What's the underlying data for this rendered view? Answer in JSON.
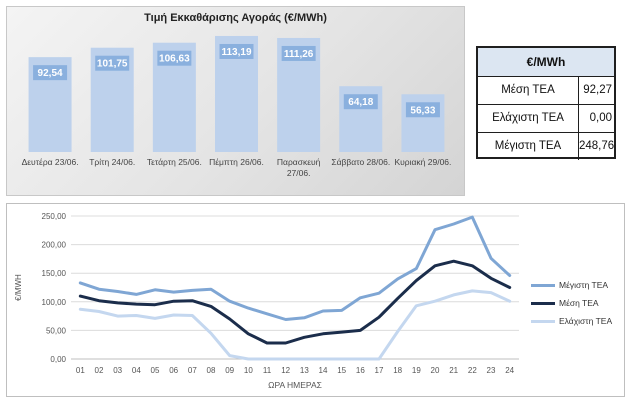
{
  "chart_data": [
    {
      "type": "bar",
      "title": "Τιμή Εκκαθάρισης Αγοράς (€/MWh)",
      "categories": [
        "Δευτέρα 23/06.",
        "Τρίτη 24/06.",
        "Τετάρτη 25/06.",
        "Πέμπτη 26/06.",
        "Παρασκευή 27/06.",
        "Σάββατο 28/06.",
        "Κυριακή 29/06."
      ],
      "values": [
        92.54,
        101.75,
        106.63,
        113.19,
        111.26,
        64.18,
        56.33
      ],
      "value_labels": [
        "92,54",
        "101,75",
        "106,63",
        "113,19",
        "111,26",
        "64,18",
        "56,33"
      ],
      "ylim": [
        0,
        120
      ],
      "grid": false,
      "bar_color": "#bdd1ec",
      "label_box_color": "#8ab0de"
    },
    {
      "type": "line",
      "xlabel": "ΩΡΑ ΗΜΕΡΑΣ",
      "ylabel": "€/MWH",
      "x": [
        "01",
        "02",
        "03",
        "04",
        "05",
        "06",
        "07",
        "08",
        "09",
        "10",
        "11",
        "12",
        "13",
        "14",
        "15",
        "16",
        "17",
        "18",
        "19",
        "20",
        "21",
        "22",
        "23",
        "24"
      ],
      "yticks": [
        "0,00",
        "50,00",
        "100,00",
        "150,00",
        "200,00",
        "250,00"
      ],
      "ylim": [
        0,
        250
      ],
      "grid": true,
      "legend_position": "right",
      "series": [
        {
          "name": "Μέγιστη ΤΕΑ",
          "color": "#7fa6d4",
          "values": [
            133,
            122,
            118,
            113,
            121,
            117,
            120,
            122,
            101,
            89,
            79,
            69,
            72,
            84,
            85,
            107,
            115,
            140,
            158,
            226,
            236,
            248,
            176,
            146
          ]
        },
        {
          "name": "Μέση ΤΕΑ",
          "color": "#1b2d4b",
          "values": [
            110,
            102,
            98,
            96,
            95,
            101,
            102,
            92,
            70,
            44,
            28,
            28,
            38,
            44,
            47,
            50,
            73,
            106,
            137,
            163,
            171,
            163,
            141,
            125
          ]
        },
        {
          "name": "Ελάχιστη ΤΕΑ",
          "color": "#c4d7ef",
          "values": [
            87,
            83,
            75,
            76,
            71,
            77,
            76,
            45,
            6,
            0,
            0,
            0,
            0,
            0,
            0,
            0,
            0,
            48,
            93,
            101,
            112,
            119,
            116,
            101
          ]
        }
      ]
    }
  ],
  "stats": {
    "header": "€/MWh",
    "rows": [
      {
        "label": "Μέση ΤΕΑ",
        "value": "92,27"
      },
      {
        "label": "Ελάχιστη ΤΕΑ",
        "value": "0,00"
      },
      {
        "label": "Μέγιστη ΤΕΑ",
        "value": "248,76"
      }
    ]
  }
}
